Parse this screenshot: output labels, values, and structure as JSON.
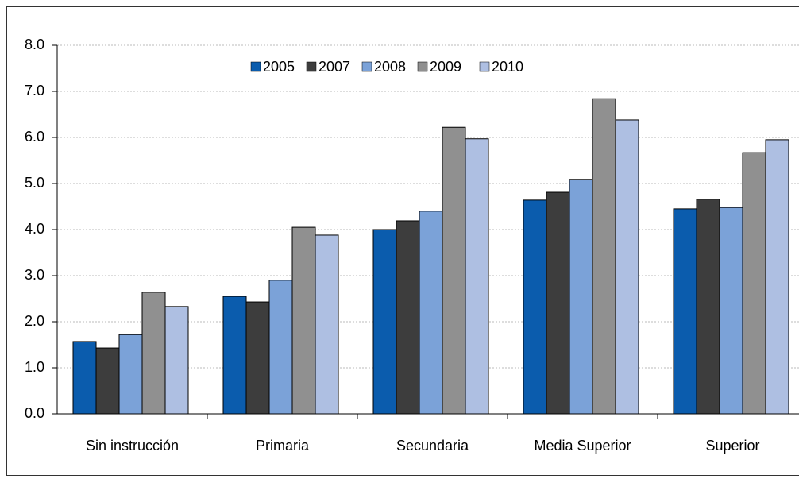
{
  "chart_data": {
    "type": "bar",
    "categories": [
      "Sin instrucción",
      "Primaria",
      "Secundaria",
      "Media Superior",
      "Superior"
    ],
    "series": [
      {
        "name": "2005",
        "color": "#0b5cad",
        "values": [
          1.57,
          2.55,
          4.0,
          4.64,
          4.45
        ]
      },
      {
        "name": "2007",
        "color": "#3d3d3d",
        "values": [
          1.43,
          2.43,
          4.19,
          4.81,
          4.66
        ]
      },
      {
        "name": "2008",
        "color": "#7ba2d8",
        "values": [
          1.72,
          2.9,
          4.4,
          5.09,
          4.48
        ]
      },
      {
        "name": "2009",
        "color": "#909090",
        "values": [
          2.64,
          4.05,
          6.22,
          6.84,
          5.67
        ]
      },
      {
        "name": "2010",
        "color": "#aebfe2",
        "values": [
          2.33,
          3.88,
          5.97,
          6.38,
          5.95
        ]
      }
    ],
    "ylim": [
      0,
      8
    ],
    "yticks": [
      {
        "value": 0,
        "label": "0.0"
      },
      {
        "value": 1,
        "label": "1.0"
      },
      {
        "value": 2,
        "label": "2.0"
      },
      {
        "value": 3,
        "label": "3.0"
      },
      {
        "value": 4,
        "label": "4.0"
      },
      {
        "value": 5,
        "label": "5.0"
      },
      {
        "value": 6,
        "label": "6.0"
      },
      {
        "value": 7,
        "label": "7.0"
      },
      {
        "value": 8,
        "label": "8.0"
      }
    ],
    "grid": true,
    "legend": "top"
  }
}
